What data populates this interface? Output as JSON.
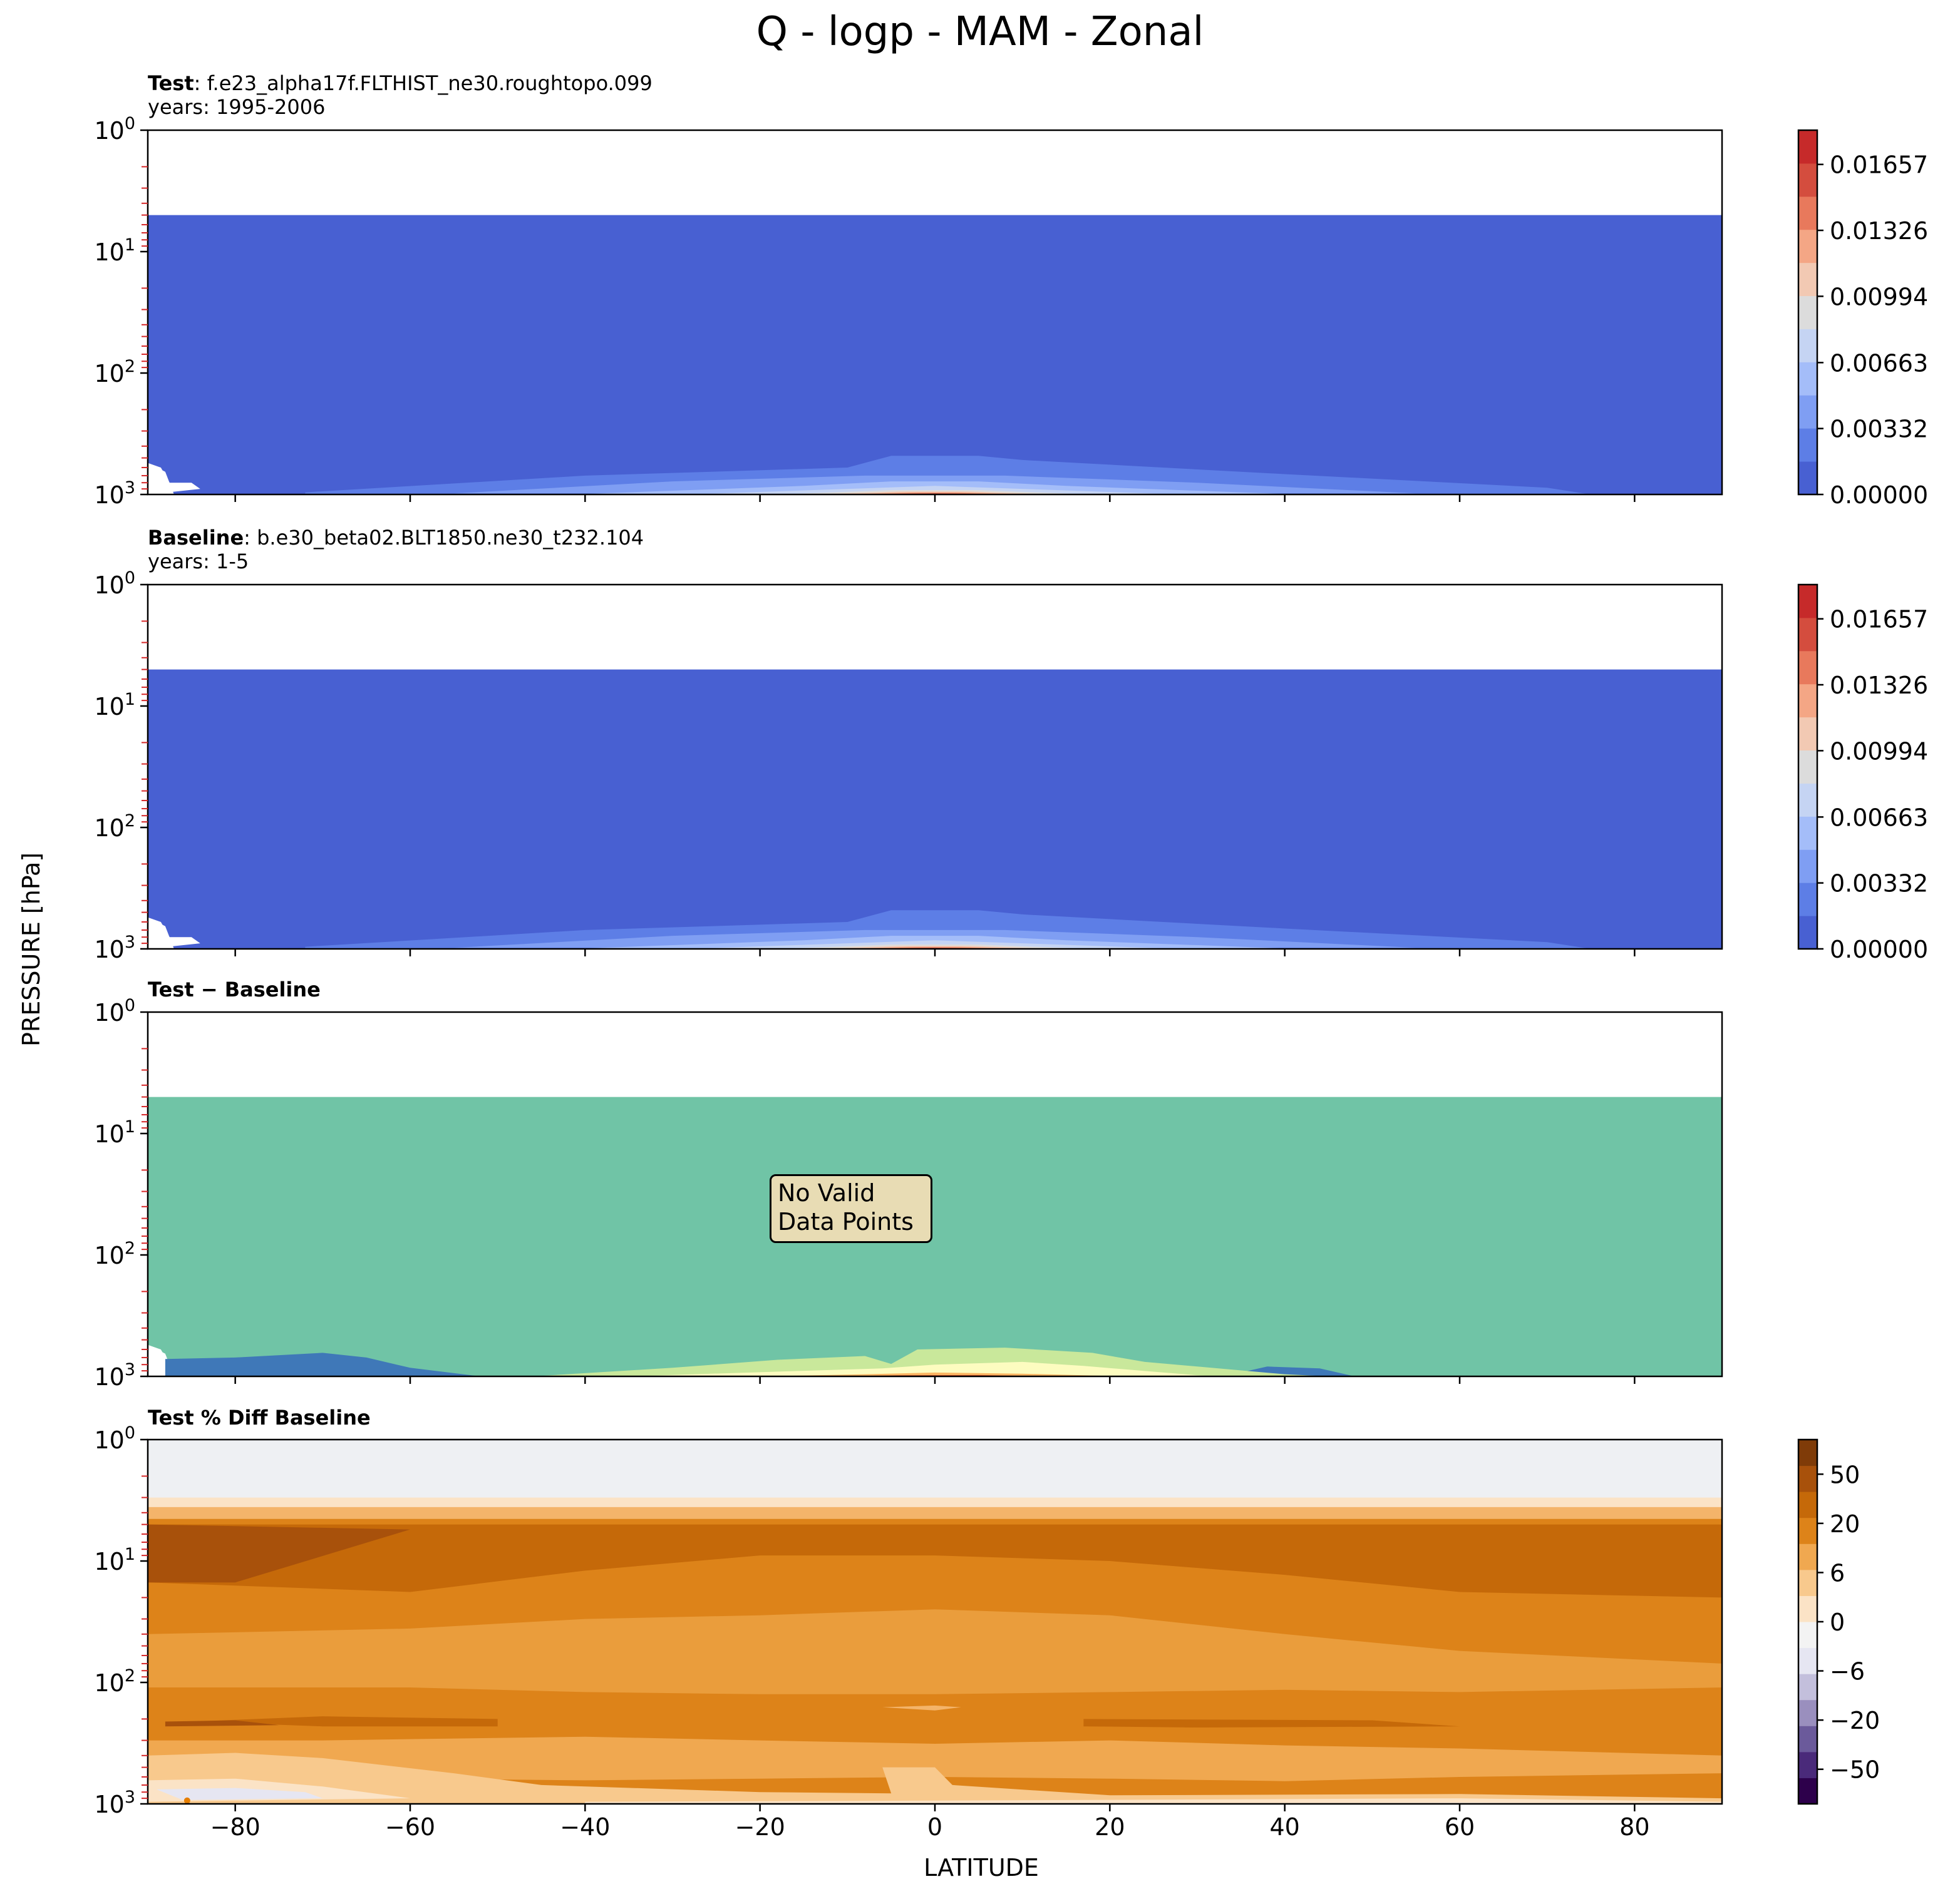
{
  "figure": {
    "title": "Q - logp - MAM - Zonal",
    "ylabel": "PRESSURE [hPa]",
    "xlabel": "LATITUDE"
  },
  "colors": {
    "coolwarm_low": "#4860d2",
    "coolwarm_high": "#c62a2a",
    "diff_background": "#70c4a6",
    "pct_background": "#eef0f3",
    "no_data_box": "#e8dcb4"
  },
  "chart_data": [
    {
      "type": "heatmap",
      "panel": "test",
      "title_bold": "Test",
      "title_rest": ": f.e23_alpha17f.FLTHIST_ne30.roughtopo.099",
      "years": "years: 1995-2006",
      "xlim": [
        -90,
        90
      ],
      "ylim": [
        1000,
        1
      ],
      "yscale": "log",
      "yticks": [
        1,
        10,
        100,
        1000
      ],
      "ytick_labels": [
        "10^0",
        "10^1",
        "10^2",
        "10^3"
      ],
      "data_top_hPa": 5,
      "colorbar_ticks": [
        "0.01657",
        "0.01326",
        "0.00994",
        "0.00663",
        "0.00332",
        "0.00000"
      ],
      "colormap": "coolwarm",
      "max_value_lat": 0,
      "max_value_level_hPa": 1000
    },
    {
      "type": "heatmap",
      "panel": "baseline",
      "title_bold": "Baseline",
      "title_rest": ": b.e30_beta02.BLT1850.ne30_t232.104",
      "years": "years: 1-5",
      "xlim": [
        -90,
        90
      ],
      "ylim": [
        1000,
        1
      ],
      "yscale": "log",
      "yticks": [
        1,
        10,
        100,
        1000
      ],
      "ytick_labels": [
        "10^0",
        "10^1",
        "10^2",
        "10^3"
      ],
      "data_top_hPa": 5,
      "colorbar_ticks": [
        "0.01657",
        "0.01326",
        "0.00994",
        "0.00663",
        "0.00332",
        "0.00000"
      ],
      "colormap": "coolwarm",
      "max_value_lat": 0,
      "max_value_level_hPa": 1000
    },
    {
      "type": "heatmap",
      "panel": "difference",
      "title_bold": "Test − Baseline",
      "annotation": "No Valid\nData Points",
      "annotation_lines": [
        "No Valid",
        "Data Points"
      ],
      "xlim": [
        -90,
        90
      ],
      "ylim": [
        1000,
        1
      ],
      "yscale": "log",
      "yticks": [
        1,
        10,
        100,
        1000
      ],
      "ytick_labels": [
        "10^0",
        "10^1",
        "10^2",
        "10^3"
      ],
      "data_top_hPa": 5
    },
    {
      "type": "heatmap",
      "panel": "percent_difference",
      "title_bold": "Test % Diff Baseline",
      "xlim": [
        -90,
        90
      ],
      "ylim": [
        1000,
        1
      ],
      "yscale": "log",
      "yticks": [
        1,
        10,
        100,
        1000
      ],
      "ytick_labels": [
        "10^0",
        "10^1",
        "10^2",
        "10^3"
      ],
      "xticks": [
        -80,
        -60,
        -40,
        -20,
        0,
        20,
        40,
        60,
        80
      ],
      "xtick_labels": [
        "−80",
        "−60",
        "−40",
        "−20",
        "0",
        "20",
        "40",
        "60",
        "80"
      ],
      "colorbar_ticks": [
        "50",
        "20",
        "6",
        "0",
        "−6",
        "−20",
        "−50"
      ],
      "colormap": "PuOr_r"
    }
  ]
}
